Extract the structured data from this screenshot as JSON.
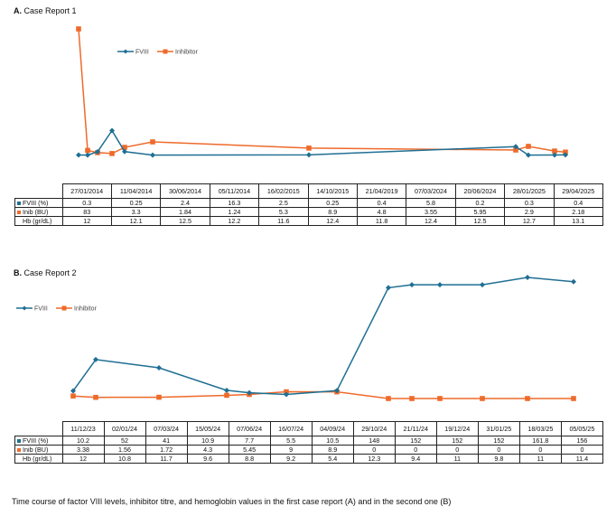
{
  "colors": {
    "fviii": "#1F6F93",
    "inhibitor": "#EE6A2A"
  },
  "caption": "Time course of factor VIII levels, inhibitor titre, and hemoglobin values in the first case report (A) and in the second one (B)",
  "chart_data": [
    {
      "type": "line",
      "title": "A. Case Report 1",
      "title_letter": "A.",
      "title_text": "Case Report 1",
      "categories": [
        "27/01/2014",
        "11/04/2014",
        "30/06/2014",
        "05/11/2014",
        "16/02/2015",
        "14/10/2015",
        "21/04/2019",
        "07/03/2024",
        "20/06/2024",
        "28/01/2025",
        "29/04/2025"
      ],
      "series": [
        {
          "name": "FVIII",
          "row_label": "FVIII (%)",
          "color": "#1F6F93",
          "values": [
            0.3,
            0.25,
            2.4,
            16.3,
            2.5,
            0.25,
            0.4,
            5.8,
            0.2,
            0.3,
            0.4
          ],
          "labels": [
            "0.3",
            "0.25",
            "2.4",
            "16.3",
            "2.5",
            "0.25",
            "0.4",
            "5.8",
            "0.2",
            "0.3",
            "0.4"
          ]
        },
        {
          "name": "Inhibitor",
          "row_label": "Inib (BU)",
          "color": "#EE6A2A",
          "values": [
            83,
            3.3,
            1.84,
            1.24,
            5.3,
            8.9,
            4.8,
            3.55,
            5.95,
            2.9,
            2.18
          ],
          "labels": [
            "83",
            "3.3",
            "1.84",
            "1.24",
            "5.3",
            "8.9",
            "4.8",
            "3.55",
            "5.95",
            "2.9",
            "2.18"
          ]
        }
      ],
      "hb": {
        "row_label": "Hb (gr/dL)",
        "labels": [
          "12",
          "12.1",
          "12.5",
          "12.2",
          "11.6",
          "12.4",
          "11.8",
          "12.4",
          "12.5",
          "12.7",
          "13.1"
        ]
      },
      "legend": [
        "FVIII",
        "Inhibitor"
      ]
    },
    {
      "type": "line",
      "title": "B. Case Report 2",
      "title_letter": "B.",
      "title_text": "Case Report 2",
      "categories": [
        "11/12/23",
        "02/01/24",
        "07/03/24",
        "15/05/24",
        "07/06/24",
        "16/07/24",
        "04/09/24",
        "29/10/24",
        "21/11/24",
        "19/12/24",
        "31/01/25",
        "18/03/25",
        "05/05/25"
      ],
      "series": [
        {
          "name": "FVIII",
          "row_label": "FVIII (%)",
          "color": "#1F6F93",
          "values": [
            10.2,
            52,
            41,
            10.9,
            7.7,
            5.5,
            10.5,
            148,
            152,
            152,
            152,
            161.8,
            156
          ],
          "labels": [
            "10.2",
            "52",
            "41",
            "10.9",
            "7.7",
            "5.5",
            "10.5",
            "148",
            "152",
            "152",
            "152",
            "161.8",
            "156"
          ]
        },
        {
          "name": "Inhibitor",
          "row_label": "Inib (BU)",
          "color": "#EE6A2A",
          "values": [
            3.38,
            1.56,
            1.72,
            4.3,
            5.45,
            9,
            8.9,
            0,
            0,
            0,
            0,
            0,
            0
          ],
          "labels": [
            "3.38",
            "1.56",
            "1.72",
            "4.3",
            "5.45",
            "9",
            "8.9",
            "0",
            "0",
            "0",
            "0",
            "0",
            "0"
          ]
        }
      ],
      "hb": {
        "row_label": "Hb (gr/dL)",
        "labels": [
          "12",
          "10.8",
          "11.7",
          "9.6",
          "8.8",
          "9.2",
          "5.4",
          "12.3",
          "9.4",
          "11",
          "9.8",
          "11",
          "11.4"
        ]
      },
      "legend": [
        "FVIII",
        "Inhibitor"
      ]
    }
  ]
}
